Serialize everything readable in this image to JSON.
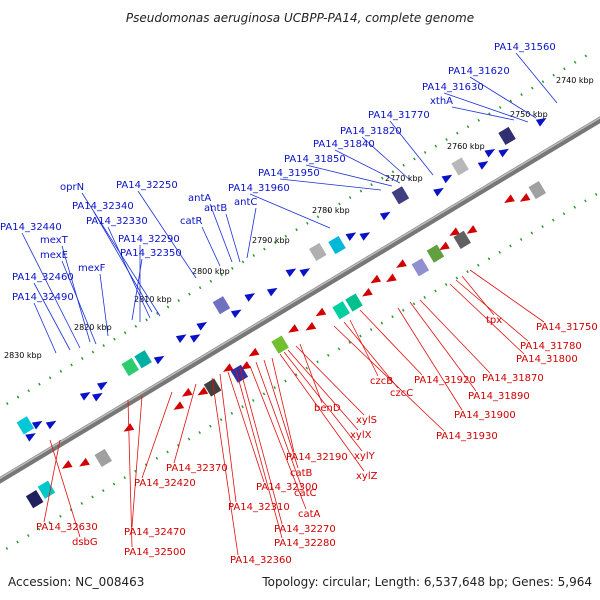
{
  "title": "Pseudomonas aeruginosa UCBPP-PA14, complete genome",
  "accession": "Accession: NC_008463",
  "summary": "Topology: circular; Length: 6,537,648 bp; Genes: 5,964",
  "ticks": [
    "2740 kbp",
    "2750 kbp",
    "2760 kbp",
    "2770 kbp",
    "2780 kbp",
    "2790 kbp",
    "2800 kbp",
    "2810 kbp",
    "2820 kbp",
    "2830 kbp"
  ],
  "colors": {
    "forward": "#0a12c8",
    "reverse": "#d20000",
    "backbone": "#777777",
    "tick": "#2a9a2a"
  },
  "top_labels": [
    "PA14_31560",
    "PA14_31620",
    "PA14_31630",
    "xthA",
    "PA14_31770",
    "PA14_31820",
    "PA14_31840",
    "PA14_31850",
    "PA14_31950",
    "PA14_31960",
    "antC",
    "antB",
    "antA",
    "catR",
    "PA14_32250",
    "oprN",
    "PA14_32340",
    "PA14_32330",
    "PA14_32290",
    "PA14_32350",
    "PA14_32440",
    "mexT",
    "mexE",
    "mexF",
    "PA14_32460",
    "PA14_32490"
  ],
  "bottom_labels": [
    "PA14_31750",
    "tpx",
    "PA14_31780",
    "PA14_31800",
    "PA14_31870",
    "PA14_31890",
    "PA14_31900",
    "PA14_31920",
    "czcB",
    "czcC",
    "PA14_31930",
    "benD",
    "xylS",
    "xylX",
    "xylY",
    "xylZ",
    "PA14_32190",
    "catB",
    "catC",
    "catA",
    "PA14_32270",
    "PA14_32280",
    "PA14_32300",
    "PA14_32310",
    "PA14_32360",
    "PA14_32370",
    "PA14_32420",
    "PA14_32470",
    "PA14_32500",
    "PA14_32630",
    "dsbG"
  ]
}
